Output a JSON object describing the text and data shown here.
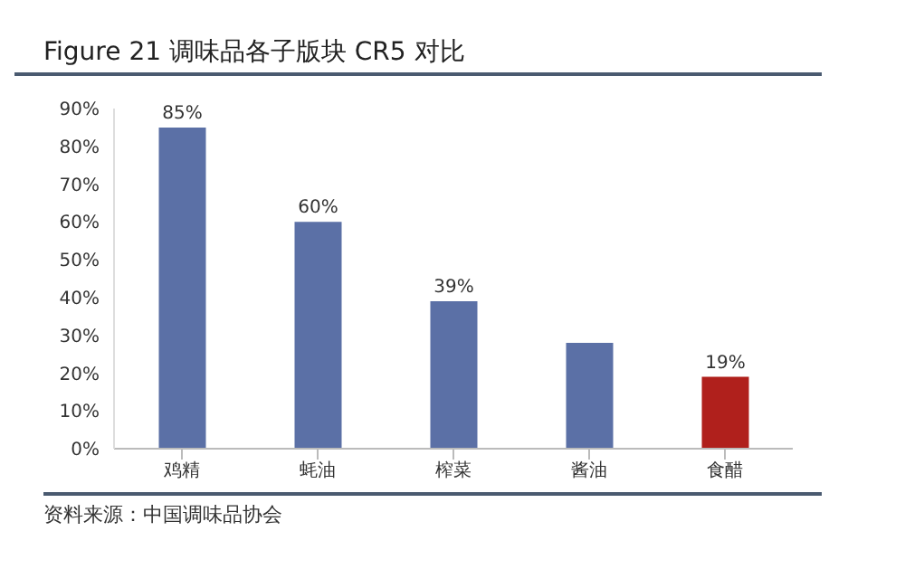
{
  "chart_data": {
    "type": "bar",
    "title": "Figure 21  调味品各子版块 CR5 对比",
    "categories": [
      "鸡精",
      "蚝油",
      "榨菜",
      "酱油",
      "食醋"
    ],
    "values": [
      85,
      60,
      39,
      28,
      19
    ],
    "colors": [
      "#5b70a6",
      "#5b70a6",
      "#5b70a6",
      "#5b70a6",
      "#b0201c"
    ],
    "value_labels": [
      "85%",
      "60%",
      "39%",
      null,
      "19%"
    ],
    "ylim": [
      0,
      90
    ],
    "yticks": [
      {
        "value": 0,
        "label": "0%"
      },
      {
        "value": 10,
        "label": "10%"
      },
      {
        "value": 20,
        "label": "20%"
      },
      {
        "value": 30,
        "label": "30%"
      },
      {
        "value": 40,
        "label": "40%"
      },
      {
        "value": 50,
        "label": "50%"
      },
      {
        "value": 60,
        "label": "60%"
      },
      {
        "value": 70,
        "label": "70%"
      },
      {
        "value": 80,
        "label": "80%"
      },
      {
        "value": 90,
        "label": "90%"
      }
    ],
    "grid": false,
    "annotations": [
      "资料来源：中国调味品协会"
    ]
  }
}
